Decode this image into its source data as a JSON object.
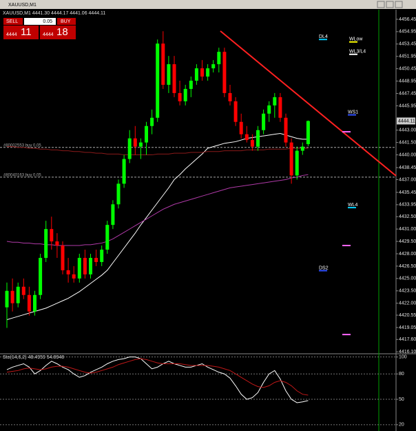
{
  "window_title": "XAUUSD,M1",
  "trade_panel": {
    "sell": "SELL",
    "buy": "BUY",
    "lots": "0.05",
    "sell_big": "4444",
    "sell_small": "11",
    "buy_big": "4444",
    "buy_small": "18"
  },
  "chart_data": [
    {
      "type": "candlestick",
      "title": "XAUUSD,M1  4441.30 4444.17 4441.06 4444.11",
      "up_color": "#00ff00",
      "down_color": "#ff0000",
      "open": [
        4421.5,
        4423.5,
        4422,
        4424,
        4423,
        4421,
        4423,
        4427.5,
        4431,
        4429.5,
        4429,
        4426,
        4425.5,
        4425,
        4427.5,
        4425.5,
        4427.5,
        4427,
        4428.5,
        4431.5,
        4434,
        4436.5,
        4439.5,
        4442,
        4441,
        4441.5,
        4443.5,
        4444.5,
        4453.5,
        4448.5,
        4451,
        4447.5,
        4446.5,
        4448,
        4449,
        4450.5,
        4449.5,
        4450.5,
        4451,
        4452.5,
        4447.5,
        4446.5,
        4444,
        4442.5,
        4441.8,
        4441,
        4443,
        4445,
        4446,
        4447,
        4444.5,
        4441.5,
        4437.5,
        4440.5,
        4441.3
      ],
      "high": [
        4424.5,
        4425,
        4424.5,
        4425,
        4424,
        4423.5,
        4428,
        4432,
        4432.5,
        4430.5,
        4429.5,
        4427.5,
        4426.5,
        4428,
        4428.5,
        4428,
        4428.5,
        4429,
        4432,
        4434.5,
        4437,
        4440,
        4443,
        4443.5,
        4442,
        4444,
        4445.5,
        4454,
        4455,
        4452,
        4452,
        4449,
        4448.5,
        4449.5,
        4451,
        4451.5,
        4451,
        4451.5,
        4453,
        4453,
        4448.5,
        4447,
        4445,
        4443.5,
        4442.5,
        4443.5,
        4445.5,
        4446.5,
        4447.5,
        4447.5,
        4445,
        4442,
        4441,
        4441.5,
        4444.17
      ],
      "low": [
        4419,
        4421,
        4421.5,
        4422.5,
        4420.5,
        4420.5,
        4422.5,
        4427,
        4428.5,
        4427.5,
        4425.5,
        4424.5,
        4424.5,
        4424.5,
        4425,
        4425,
        4426.5,
        4426.5,
        4428,
        4431,
        4433.5,
        4436,
        4439,
        4440,
        4439.5,
        4440,
        4442.5,
        4444,
        4448,
        4447.5,
        4447,
        4446,
        4446,
        4447,
        4448.5,
        4449,
        4449,
        4450,
        4450,
        4447,
        4446,
        4443.5,
        4442,
        4441.5,
        4440.5,
        4440.5,
        4442.5,
        4444,
        4444.5,
        4444,
        4441,
        4436.5,
        4437,
        4440,
        4441.06
      ],
      "close": [
        4423.5,
        4422,
        4424,
        4423,
        4421,
        4423,
        4427.5,
        4431,
        4429.5,
        4429,
        4426,
        4425.5,
        4425,
        4427.5,
        4425.5,
        4427.5,
        4427,
        4428.5,
        4431.5,
        4434,
        4436.5,
        4439.5,
        4442,
        4441,
        4441.5,
        4443.5,
        4444.5,
        4453.5,
        4448.5,
        4451,
        4447.5,
        4446.5,
        4448,
        4449,
        4450.5,
        4449.5,
        4450.5,
        4451,
        4452.5,
        4447.5,
        4446.5,
        4444,
        4442.5,
        4441.8,
        4441,
        4443,
        4445,
        4446,
        4447,
        4444.5,
        4441.5,
        4437.5,
        4440.5,
        4441,
        4444.11
      ],
      "series": [
        {
          "color": "#ffffff",
          "values": [
            4420,
            4420.2,
            4420.4,
            4420.6,
            4420.8,
            4421,
            4421.2,
            4421.4,
            4421.7,
            4422,
            4422.3,
            4422.6,
            4423,
            4423.4,
            4423.9,
            4424.4,
            4424.9,
            4425.4,
            4426,
            4426.9,
            4427.8,
            4428.7,
            4429.6,
            4430.5,
            4431.5,
            4432.4,
            4433.3,
            4434.2,
            4435.1,
            4436,
            4437,
            4437.6,
            4438.3,
            4438.9,
            4439.5,
            4440.1,
            4440.8,
            4441,
            4441.2,
            4441.4,
            4441.5,
            4441.6,
            4441.8,
            4442,
            4442.1,
            4442.2,
            4442.3,
            4442.4,
            4442.5,
            4442.6,
            4442.4,
            4442.2,
            4442,
            4441.9,
            4441.9
          ]
        },
        {
          "color": "#8b1a1a",
          "values": [
            4441,
            4441,
            4440.9,
            4440.9,
            4440.8,
            4440.8,
            4440.7,
            4440.7,
            4440.6,
            4440.6,
            4440.5,
            4440.5,
            4440.4,
            4440.4,
            4440.3,
            4440.3,
            4440.2,
            4440.2,
            4440.1,
            4440.1,
            4440.1,
            4440,
            4440,
            4440,
            4440,
            4440,
            4440,
            4440.1,
            4440.1,
            4440.1,
            4440.2,
            4440.2,
            4440.2,
            4440.3,
            4440.3,
            4440.3,
            4440.4,
            4440.4,
            4440.4,
            4440.5,
            4440.5,
            4440.5,
            4440.5,
            4440.6,
            4440.6,
            4440.6,
            4440.6,
            4440.7,
            4440.7,
            4440.7,
            4440.7,
            4440.8,
            4440.8,
            4440.8,
            4440.8
          ]
        },
        {
          "color": "#b03aa8",
          "values": [
            4429.5,
            4429.4,
            4429.4,
            4429.3,
            4429.3,
            4429.2,
            4429.2,
            4429.1,
            4429.1,
            4429,
            4429,
            4429,
            4429,
            4429,
            4429.1,
            4429.1,
            4429.2,
            4429.3,
            4429.5,
            4429.8,
            4430.2,
            4430.6,
            4431,
            4431.4,
            4431.8,
            4432.2,
            4432.6,
            4433,
            4433.4,
            4433.7,
            4434,
            4434.2,
            4434.4,
            4434.6,
            4434.8,
            4435,
            4435.2,
            4435.4,
            4435.6,
            4435.8,
            4436,
            4436.1,
            4436.2,
            4436.3,
            4436.4,
            4436.5,
            4436.6,
            4436.7,
            4436.8,
            4436.9,
            4437,
            4437.2,
            4437.3,
            4437.5,
            4437.6
          ]
        }
      ],
      "ylim": [
        4415.95,
        4457.45
      ],
      "yticks": [
        {
          "value": 4416.1,
          "label": "4416.10"
        },
        {
          "value": 4417.6,
          "label": "4417.60"
        },
        4419.05,
        4420.55,
        {
          "value": 4422,
          "label": "4422.00"
        },
        {
          "value": 4423.5,
          "label": "4423.50"
        },
        {
          "value": 4425,
          "label": "4425.00"
        },
        {
          "value": 4426.5,
          "label": "4426.50"
        },
        {
          "value": 4428,
          "label": "4428.00"
        },
        {
          "value": 4429.5,
          "label": "4429.50"
        },
        {
          "value": 4431,
          "label": "4431.00"
        },
        {
          "value": 4432.5,
          "label": "4432.50"
        },
        4433.95,
        4435.45,
        {
          "value": 4437,
          "label": "4437.00"
        },
        4438.45,
        {
          "value": 4440,
          "label": "4440.00"
        },
        {
          "value": 4441.5,
          "label": "4441.50"
        },
        {
          "value": 4443,
          "label": "4443.00"
        },
        4445.95,
        4447.45,
        4448.95,
        4450.45,
        4451.95,
        4453.45,
        4454.95,
        4456.45
      ],
      "last_price": 4444.11,
      "levels": [
        {
          "label": "DL4",
          "value": 4454.0,
          "color": "#00d0ff"
        },
        {
          "label": "WLow",
          "value": 4453.7,
          "color": "#ffff00"
        },
        {
          "label": "WL3/L4",
          "value": 4452.2,
          "color": "#ffffff"
        },
        {
          "label": "WS1",
          "value": 4444.85,
          "color": "#3050ff"
        },
        {
          "label": "WL4",
          "value": 4433.6,
          "color": "#00d0ff"
        },
        {
          "label": "DS2",
          "value": 4425.95,
          "color": "#3050ff"
        }
      ],
      "orders": [
        {
          "label": "#80002553 buy 0.05",
          "value": 4440.9
        },
        {
          "label": "#80040163 buy 0.05",
          "value": 4437.3
        }
      ],
      "markers": {
        "color": "#ff66ff",
        "values": [
          4442.8,
          4429,
          4418.2
        ]
      }
    },
    {
      "type": "line",
      "title": "Sto(14,6,2) 48.4959 54.8948",
      "series": [
        {
          "color": "#ffffff",
          "values": [
            85,
            88,
            90,
            92,
            88,
            80,
            84,
            90,
            95,
            92,
            88,
            85,
            80,
            76,
            78,
            82,
            85,
            88,
            92,
            95,
            97,
            98,
            100,
            100,
            98,
            92,
            86,
            88,
            92,
            95,
            92,
            90,
            88,
            88,
            90,
            92,
            88,
            85,
            82,
            80,
            75,
            66,
            56,
            50,
            52,
            58,
            70,
            80,
            84,
            74,
            60,
            50,
            46,
            47,
            48.4959
          ]
        },
        {
          "color": "#c01818",
          "values": [
            82,
            83,
            84,
            86,
            87,
            86,
            85,
            86,
            88,
            89,
            89,
            88,
            86,
            84,
            82,
            81,
            82,
            84,
            86,
            88,
            91,
            93,
            95,
            97,
            98,
            97,
            95,
            93,
            92,
            92,
            92,
            92,
            91,
            90,
            90,
            90,
            90,
            89,
            88,
            86,
            84,
            80,
            76,
            72,
            68,
            65,
            64,
            66,
            70,
            72,
            70,
            66,
            60,
            56,
            54.8948
          ]
        }
      ],
      "ylim": [
        15,
        103
      ],
      "yticks": [
        20,
        50,
        80,
        100
      ],
      "grid": true
    }
  ]
}
